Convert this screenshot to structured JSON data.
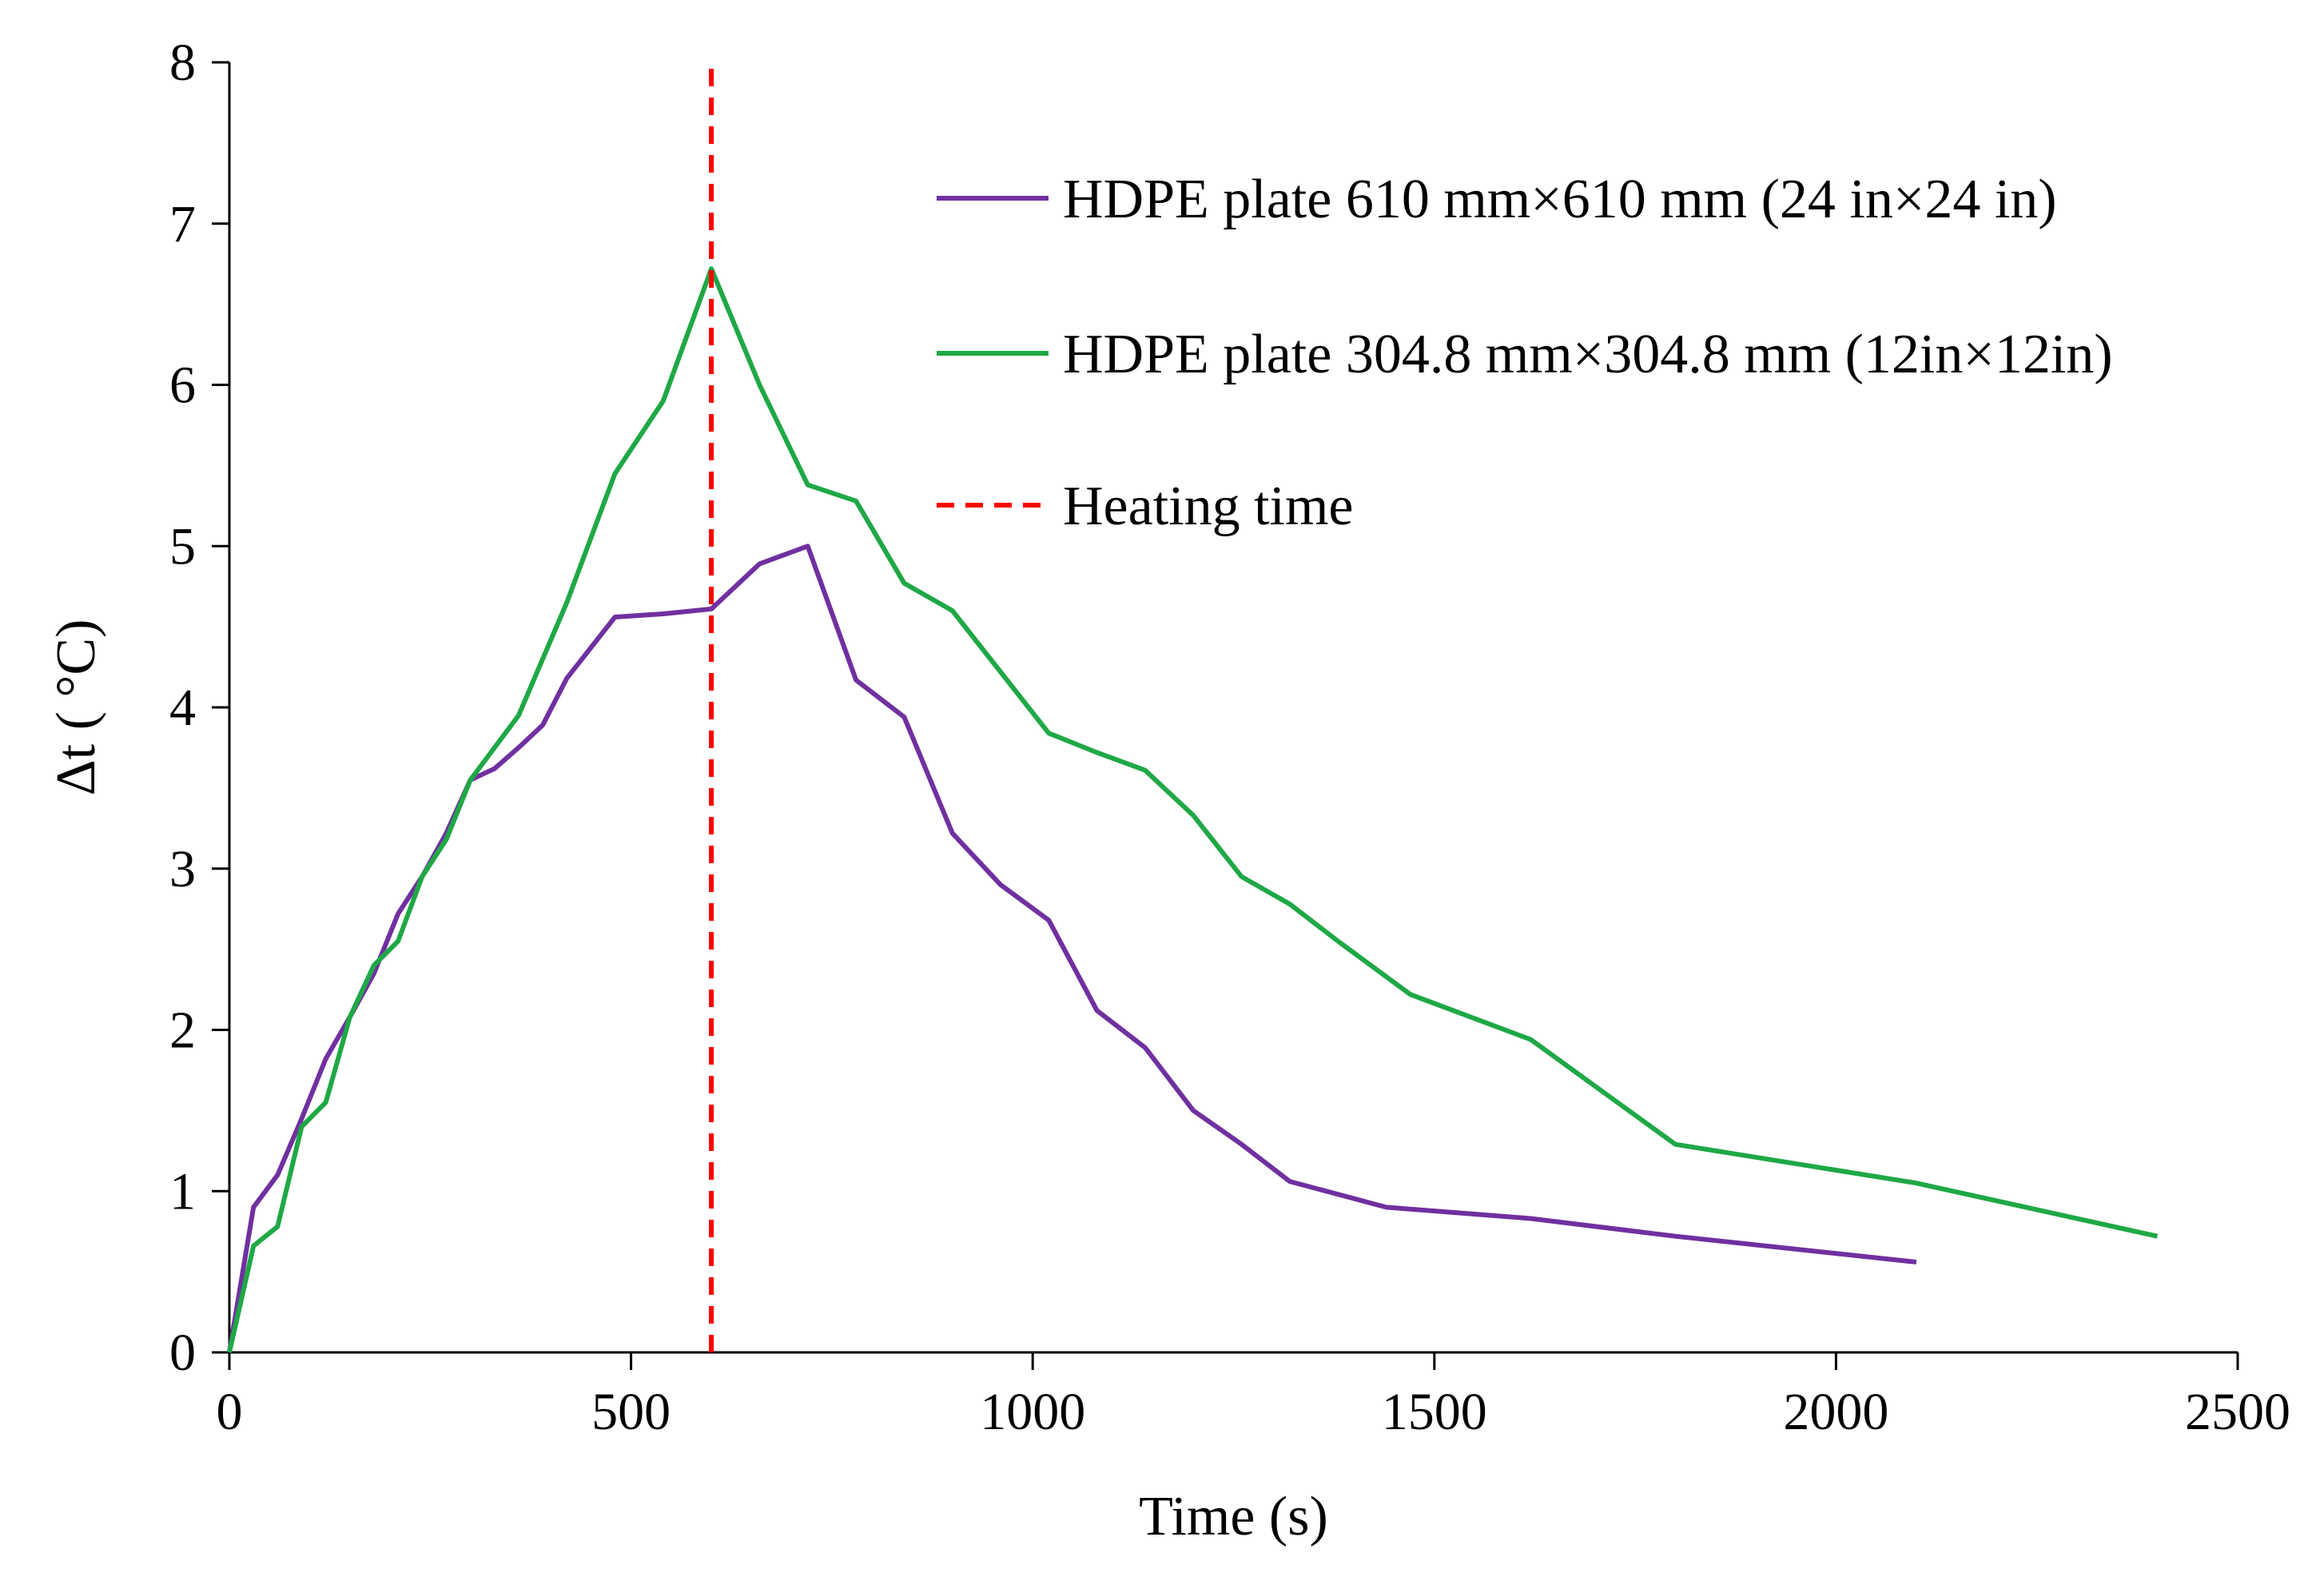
{
  "chart_data": {
    "type": "line",
    "title": "",
    "xlabel": "Time (s)",
    "ylabel": "Δt ( °C)",
    "xlim": [
      0,
      2500
    ],
    "ylim": [
      0,
      8
    ],
    "xticks": [
      0,
      500,
      1000,
      1500,
      2000,
      2500
    ],
    "yticks": [
      0,
      1,
      2,
      3,
      4,
      5,
      6,
      7,
      8
    ],
    "grid": false,
    "legend_position": "top-right",
    "series": [
      {
        "name": "HDPE plate 610 mm×610 mm (24 in×24 in)",
        "color": "#7030A0",
        "style": "solid",
        "x": [
          0,
          30,
          60,
          90,
          120,
          150,
          180,
          210,
          240,
          270,
          300,
          330,
          360,
          390,
          420,
          480,
          540,
          600,
          660,
          720,
          780,
          840,
          900,
          960,
          1020,
          1080,
          1140,
          1200,
          1260,
          1320,
          1440,
          1620,
          1800,
          2100
        ],
        "y": [
          0,
          0.9,
          1.1,
          1.45,
          1.82,
          2.08,
          2.35,
          2.72,
          2.95,
          3.22,
          3.55,
          3.62,
          3.75,
          3.89,
          4.18,
          4.56,
          4.58,
          4.61,
          4.89,
          5.0,
          4.17,
          3.94,
          3.22,
          2.9,
          2.68,
          2.12,
          1.89,
          1.5,
          1.29,
          1.06,
          0.9,
          0.83,
          0.72,
          0.56
        ]
      },
      {
        "name": "HDPE plate 304.8 mm×304.8 mm (12in×12in)",
        "color": "#1FA846",
        "style": "solid",
        "x": [
          0,
          30,
          60,
          90,
          120,
          150,
          180,
          210,
          240,
          270,
          300,
          360,
          420,
          480,
          540,
          600,
          660,
          720,
          780,
          840,
          900,
          960,
          1020,
          1080,
          1140,
          1200,
          1260,
          1320,
          1380,
          1470,
          1620,
          1800,
          2100,
          2400
        ],
        "y": [
          0,
          0.66,
          0.78,
          1.4,
          1.55,
          2.08,
          2.4,
          2.55,
          2.95,
          3.18,
          3.55,
          3.95,
          4.65,
          5.45,
          5.9,
          6.72,
          6.0,
          5.38,
          5.28,
          4.77,
          4.6,
          4.22,
          3.84,
          3.72,
          3.61,
          3.33,
          2.95,
          2.78,
          2.55,
          2.22,
          1.94,
          1.29,
          1.05,
          0.72
        ]
      },
      {
        "name": "Heating time",
        "color": "#FF0000",
        "style": "dashed",
        "x": [
          600,
          600
        ],
        "y": [
          0,
          8
        ]
      }
    ]
  }
}
